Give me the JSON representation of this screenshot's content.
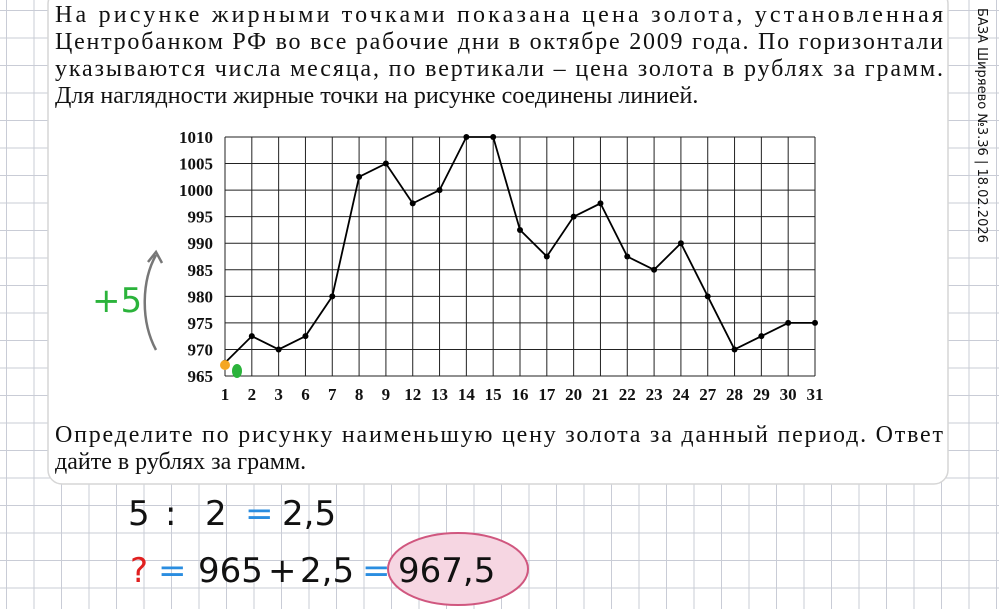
{
  "problem": {
    "lines": [
      "На рисунке жирными точками показана цена золота, установленная",
      "Центробанком РФ во все рабочие дни в октябре 2009 года. По горизонтали",
      "указываются числа месяца, по вертикали – цена золота в рублях за грамм.",
      "Для наглядности жирные точки на рисунке соединены линией."
    ],
    "question": [
      "Определите по рисунку наименьшую цену золота за данный период. Ответ",
      "дайте в рублях за грамм."
    ]
  },
  "side_label": "БАЗА Ширяево №3.36 | 18.02.2026",
  "chart_data": {
    "type": "line",
    "categories": [
      "1",
      "2",
      "3",
      "6",
      "7",
      "8",
      "9",
      "12",
      "13",
      "14",
      "15",
      "16",
      "17",
      "20",
      "21",
      "22",
      "23",
      "24",
      "27",
      "28",
      "29",
      "30",
      "31"
    ],
    "values": [
      967.5,
      972.5,
      970,
      972.5,
      980,
      1002.5,
      1005,
      997.5,
      1000,
      1010,
      1010,
      992.5,
      987.5,
      995,
      997.5,
      987.5,
      985,
      990,
      980,
      970,
      972.5,
      975,
      975
    ],
    "color": "#000000",
    "ylim": [
      965,
      1010
    ],
    "yticks": [
      965,
      970,
      975,
      980,
      985,
      990,
      995,
      1000,
      1005,
      1010
    ],
    "grid": true
  },
  "handwriting": {
    "hint": "+5",
    "step1": [
      "5",
      ":",
      "2",
      "=",
      "2,5"
    ],
    "step2": [
      "?",
      "=",
      "965",
      "+",
      "2,5",
      "=",
      "967,5"
    ]
  }
}
